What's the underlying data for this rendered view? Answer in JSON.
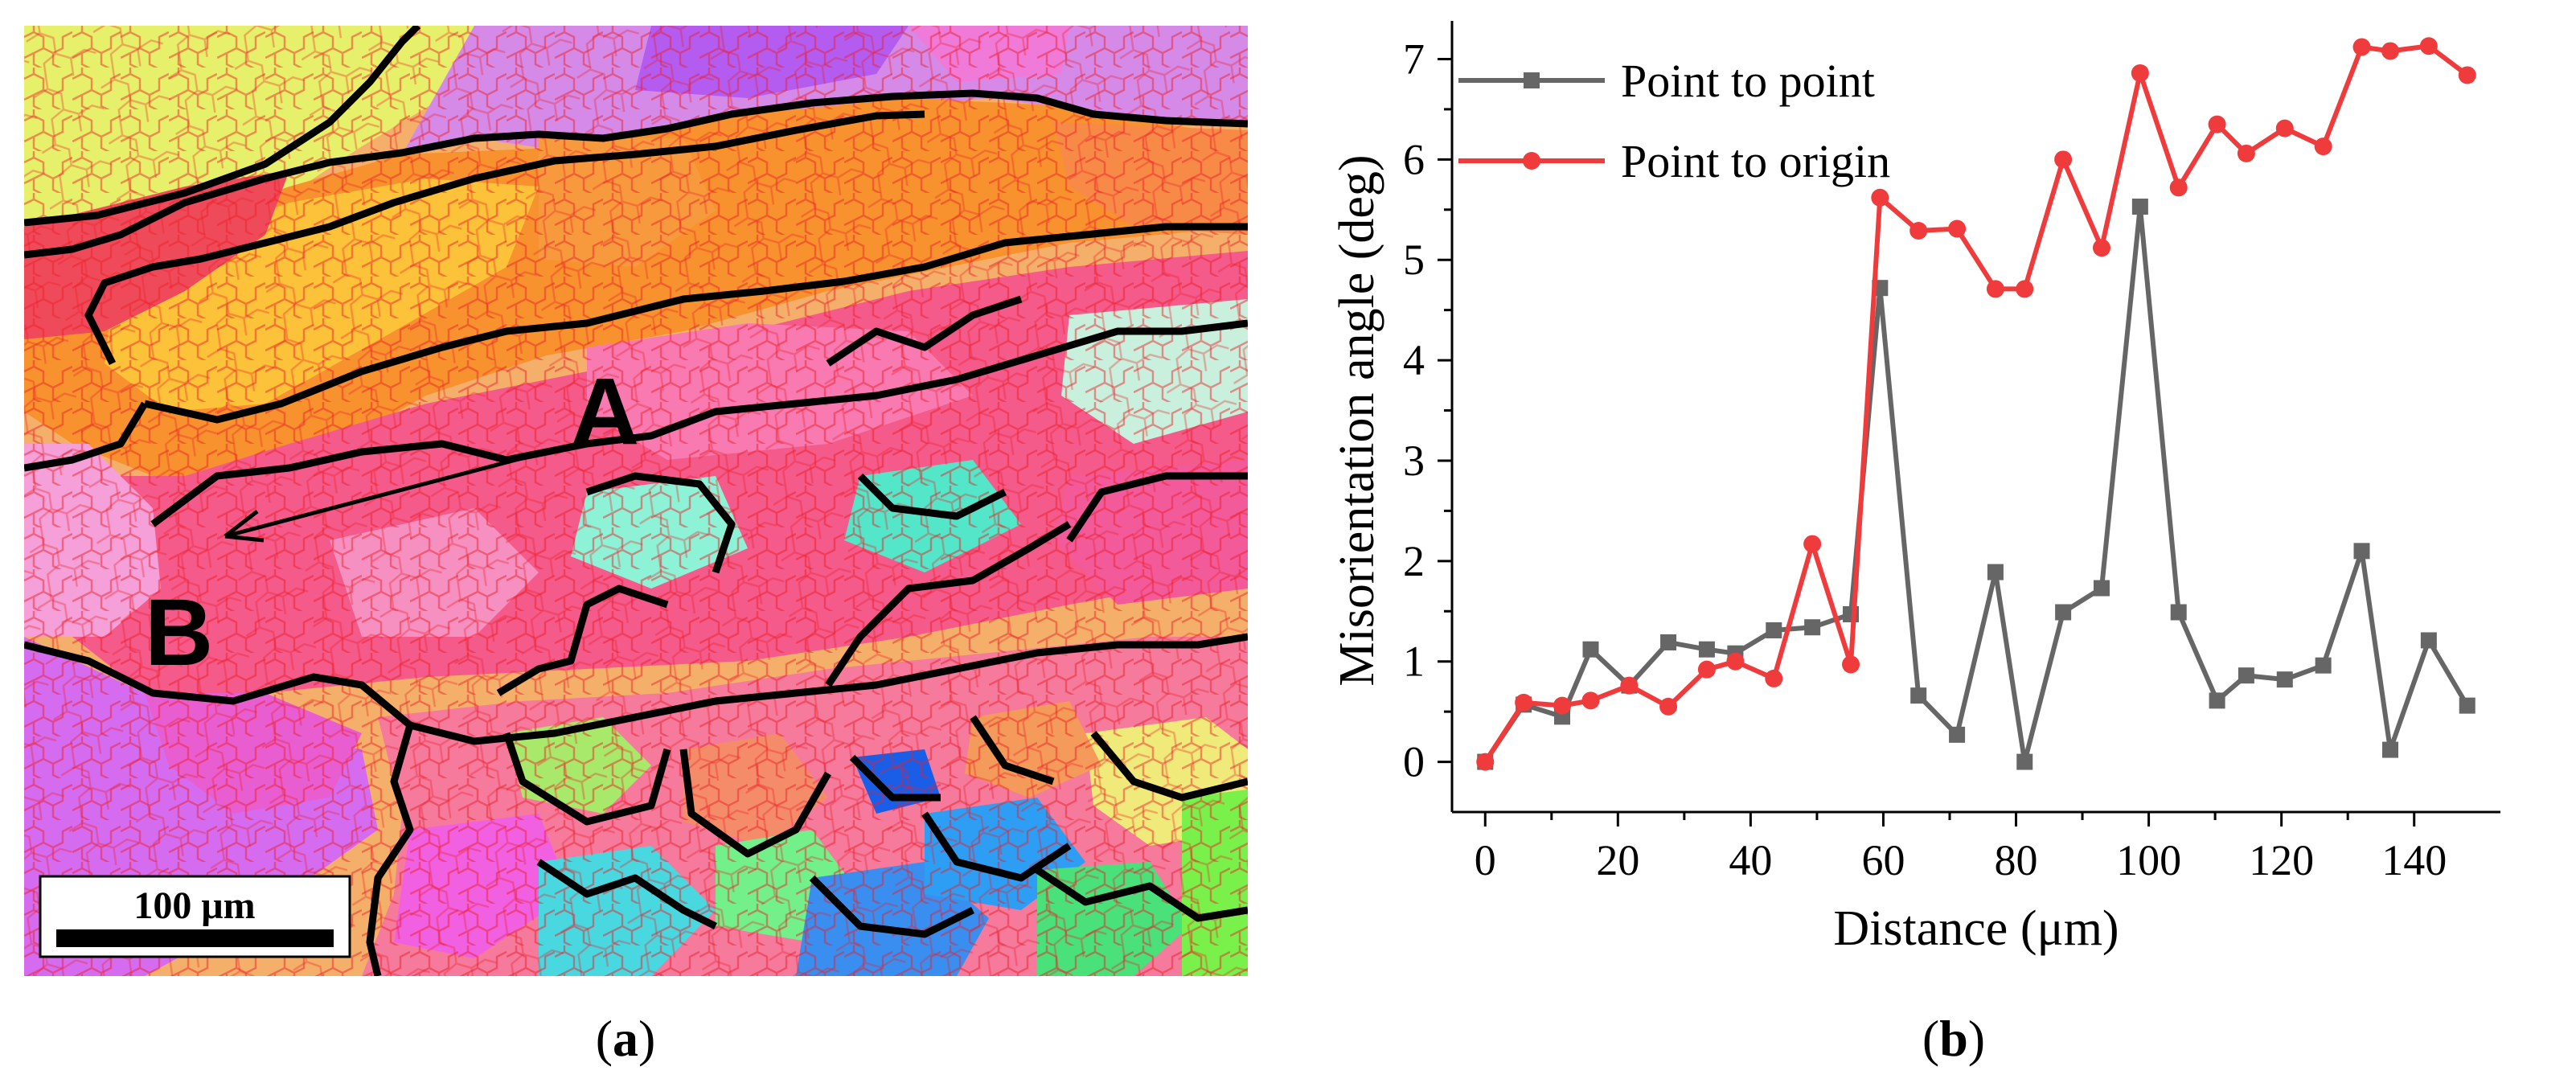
{
  "figure": {
    "panel_a_label": {
      "open": "(",
      "letter": "a",
      "close": ")"
    },
    "panel_b_label": {
      "open": "(",
      "letter": "b",
      "close": ")"
    }
  },
  "ebsd_map": {
    "point_start": "A",
    "point_end": "B",
    "scale_bar": "100 μm"
  },
  "chart_data": {
    "type": "line",
    "title": "",
    "xlabel": "Distance (μm)",
    "ylabel": "Misorientation angle (deg)",
    "xlim": [
      -5,
      153
    ],
    "ylim": [
      -0.5,
      7.3
    ],
    "xticks": [
      0,
      20,
      40,
      60,
      80,
      100,
      120,
      140
    ],
    "yticks": [
      0,
      1,
      2,
      3,
      4,
      5,
      6,
      7
    ],
    "legend_position": "top-left",
    "series": [
      {
        "name": "Point to point",
        "color": "#666666",
        "marker": "square",
        "x": [
          0,
          5.8,
          11.6,
          15.9,
          21.7,
          27.6,
          33.4,
          37.7,
          43.5,
          49.3,
          55.1,
          59.5,
          65.3,
          71.1,
          76.9,
          81.3,
          87.1,
          92.9,
          98.7,
          104.5,
          110.3,
          114.7,
          120.5,
          126.3,
          132.1,
          136.4,
          142.2,
          148
        ],
        "values": [
          0,
          0.57,
          0.45,
          1.12,
          0.76,
          1.19,
          1.12,
          1.08,
          1.31,
          1.34,
          1.47,
          4.72,
          0.66,
          0.27,
          1.89,
          0,
          1.49,
          1.73,
          5.53,
          1.49,
          0.61,
          0.86,
          0.82,
          0.96,
          2.1,
          0.12,
          1.21,
          0.56
        ]
      },
      {
        "name": "Point to origin",
        "color": "#ef3b3b",
        "marker": "circle",
        "x": [
          0,
          5.8,
          11.6,
          15.9,
          21.7,
          27.6,
          33.4,
          37.7,
          43.5,
          49.3,
          55.1,
          59.5,
          65.3,
          71.1,
          76.9,
          81.3,
          87.1,
          92.9,
          98.7,
          104.5,
          110.3,
          114.7,
          120.5,
          126.3,
          132.1,
          136.4,
          142.2,
          148
        ],
        "values": [
          0,
          0.59,
          0.56,
          0.61,
          0.76,
          0.55,
          0.92,
          1.0,
          0.83,
          2.17,
          0.97,
          5.62,
          5.29,
          5.31,
          4.71,
          4.71,
          6.0,
          5.12,
          6.86,
          5.72,
          6.35,
          6.06,
          6.31,
          6.13,
          7.12,
          7.08,
          7.13,
          6.84
        ]
      }
    ]
  }
}
